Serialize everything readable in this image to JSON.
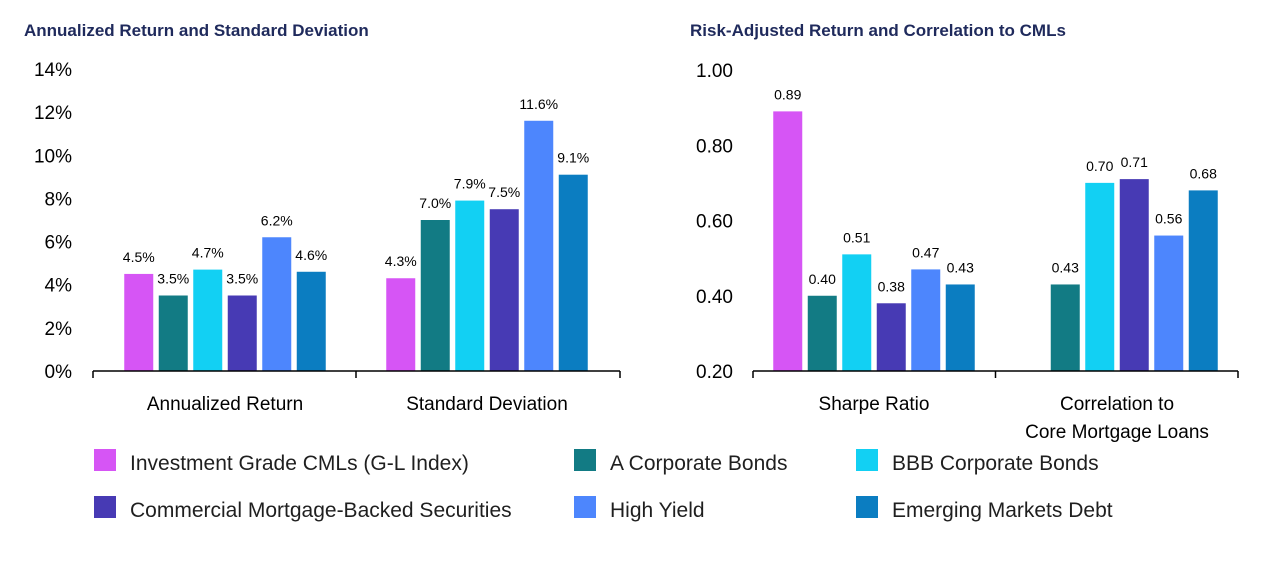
{
  "legend": [
    {
      "name": "Investment Grade CMLs (G-L Index)",
      "color": "#d655f5"
    },
    {
      "name": "A Corporate Bonds",
      "color": "#127b84"
    },
    {
      "name": "BBB Corporate Bonds",
      "color": "#12d0f3"
    },
    {
      "name": "Commercial Mortgage-Backed Securities",
      "color": "#473ab4"
    },
    {
      "name": "High Yield",
      "color": "#4d86fd"
    },
    {
      "name": "Emerging Markets Debt",
      "color": "#0b7dc1"
    }
  ],
  "chart_data": [
    {
      "type": "bar",
      "title": "Annualized Return and Standard Deviation",
      "categories": [
        "Annualized Return",
        "Standard Deviation"
      ],
      "ylim": [
        0,
        14
      ],
      "yticks": [
        0,
        2,
        4,
        6,
        8,
        10,
        12,
        14
      ],
      "ytick_labels": [
        "0%",
        "2%",
        "4%",
        "6%",
        "8%",
        "10%",
        "12%",
        "14%"
      ],
      "series": [
        {
          "name": "Investment Grade CMLs (G-L Index)",
          "values": [
            4.5,
            4.3
          ],
          "labels": [
            "4.5%",
            "4.3%"
          ]
        },
        {
          "name": "A Corporate Bonds",
          "values": [
            3.5,
            7.0
          ],
          "labels": [
            "3.5%",
            "7.0%"
          ]
        },
        {
          "name": "BBB Corporate Bonds",
          "values": [
            4.7,
            7.9
          ],
          "labels": [
            "4.7%",
            "7.9%"
          ]
        },
        {
          "name": "Commercial Mortgage-Backed Securities",
          "values": [
            3.5,
            7.5
          ],
          "labels": [
            "3.5%",
            "7.5%"
          ]
        },
        {
          "name": "High Yield",
          "values": [
            6.2,
            11.6
          ],
          "labels": [
            "6.2%",
            "11.6%"
          ]
        },
        {
          "name": "Emerging Markets Debt",
          "values": [
            4.6,
            9.1
          ],
          "labels": [
            "4.6%",
            "9.1%"
          ]
        }
      ],
      "grid": false,
      "legend": "bottom"
    },
    {
      "type": "bar",
      "title": "Risk-Adjusted Return and Correlation to CMLs",
      "categories": [
        "Sharpe Ratio",
        "Correlation to Core Mortgage Loans"
      ],
      "category_lines": [
        [
          "Sharpe Ratio"
        ],
        [
          "Correlation to",
          "Core Mortgage Loans"
        ]
      ],
      "ylim": [
        0.2,
        1.0
      ],
      "yticks": [
        0.2,
        0.4,
        0.6,
        0.8,
        1.0
      ],
      "ytick_labels": [
        "0.20",
        "0.40",
        "0.60",
        "0.80",
        "1.00"
      ],
      "series": [
        {
          "name": "Investment Grade CMLs (G-L Index)",
          "values": [
            0.89,
            null
          ],
          "labels": [
            "0.89",
            ""
          ]
        },
        {
          "name": "A Corporate Bonds",
          "values": [
            0.4,
            0.43
          ],
          "labels": [
            "0.40",
            "0.43"
          ]
        },
        {
          "name": "BBB Corporate Bonds",
          "values": [
            0.51,
            0.7
          ],
          "labels": [
            "0.51",
            "0.70"
          ]
        },
        {
          "name": "Commercial Mortgage-Backed Securities",
          "values": [
            0.38,
            0.71
          ],
          "labels": [
            "0.38",
            "0.71"
          ]
        },
        {
          "name": "High Yield",
          "values": [
            0.47,
            0.56
          ],
          "labels": [
            "0.47",
            "0.56"
          ]
        },
        {
          "name": "Emerging Markets Debt",
          "values": [
            0.43,
            0.68
          ],
          "labels": [
            "0.43",
            "0.68"
          ]
        }
      ],
      "grid": false,
      "legend": "bottom"
    }
  ]
}
